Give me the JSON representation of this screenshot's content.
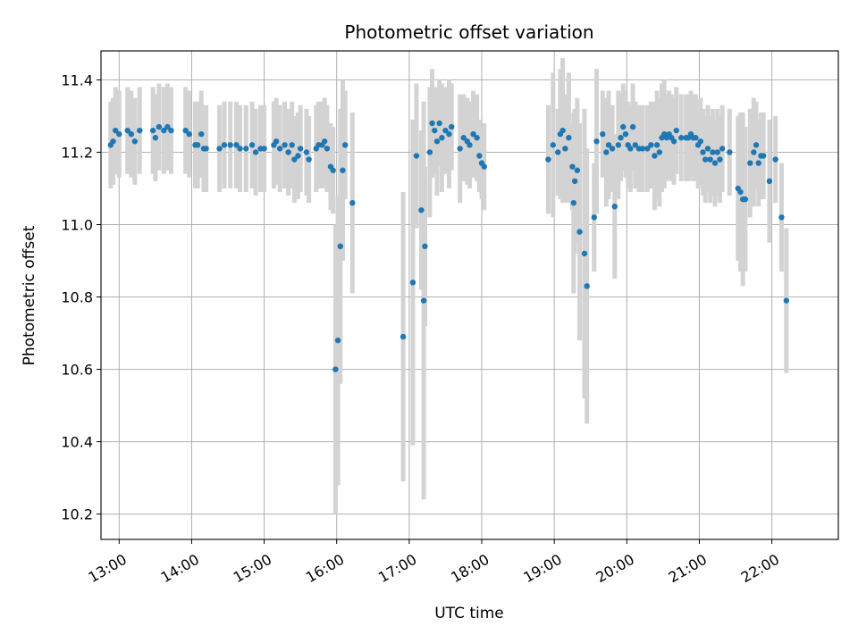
{
  "chart_data": {
    "type": "scatter",
    "title": "Photometric offset variation",
    "xlabel": "UTC time",
    "ylabel": "Photometric offset",
    "xlim": [
      "12:45",
      "22:55"
    ],
    "ylim": [
      10.13,
      11.48
    ],
    "x_ticks": [
      "13:00",
      "14:00",
      "15:00",
      "16:00",
      "17:00",
      "18:00",
      "19:00",
      "20:00",
      "21:00",
      "22:00"
    ],
    "y_ticks": [
      "10.2",
      "10.4",
      "10.6",
      "10.8",
      "11.0",
      "11.2",
      "11.4"
    ],
    "grid": true,
    "colors": {
      "point": "#1f77b4",
      "errorbar": "#d3d3d3",
      "grid": "#b0b0b0"
    },
    "series": [
      {
        "points": [
          [
            "12:53",
            11.22,
            0.12
          ],
          [
            "12:55",
            11.23,
            0.12
          ],
          [
            "12:57",
            11.26,
            0.12
          ],
          [
            "13:00",
            11.25,
            0.12
          ],
          [
            "13:07",
            11.26,
            0.12
          ],
          [
            "13:10",
            11.25,
            0.12
          ],
          [
            "13:13",
            11.23,
            0.12
          ],
          [
            "13:17",
            11.26,
            0.12
          ],
          [
            "13:28",
            11.26,
            0.12
          ],
          [
            "13:30",
            11.24,
            0.12
          ],
          [
            "13:33",
            11.27,
            0.12
          ],
          [
            "13:37",
            11.26,
            0.12
          ],
          [
            "13:40",
            11.27,
            0.12
          ],
          [
            "13:43",
            11.26,
            0.12
          ],
          [
            "13:55",
            11.26,
            0.12
          ],
          [
            "13:58",
            11.25,
            0.12
          ],
          [
            "14:03",
            11.22,
            0.12
          ],
          [
            "14:05",
            11.22,
            0.12
          ],
          [
            "14:08",
            11.25,
            0.12
          ],
          [
            "14:10",
            11.21,
            0.12
          ],
          [
            "14:12",
            11.21,
            0.12
          ],
          [
            "14:23",
            11.21,
            0.12
          ],
          [
            "14:27",
            11.22,
            0.12
          ],
          [
            "14:32",
            11.22,
            0.12
          ],
          [
            "14:37",
            11.22,
            0.12
          ],
          [
            "14:40",
            11.21,
            0.12
          ],
          [
            "14:45",
            11.21,
            0.12
          ],
          [
            "14:50",
            11.22,
            0.12
          ],
          [
            "14:53",
            11.2,
            0.12
          ],
          [
            "14:57",
            11.21,
            0.12
          ],
          [
            "15:00",
            11.21,
            0.12
          ],
          [
            "15:08",
            11.22,
            0.12
          ],
          [
            "15:10",
            11.23,
            0.12
          ],
          [
            "15:13",
            11.21,
            0.12
          ],
          [
            "15:17",
            11.22,
            0.12
          ],
          [
            "15:20",
            11.2,
            0.12
          ],
          [
            "15:23",
            11.22,
            0.12
          ],
          [
            "15:25",
            11.18,
            0.12
          ],
          [
            "15:28",
            11.19,
            0.12
          ],
          [
            "15:30",
            11.21,
            0.12
          ],
          [
            "15:35",
            11.2,
            0.12
          ],
          [
            "15:37",
            11.18,
            0.12
          ],
          [
            "15:43",
            11.21,
            0.12
          ],
          [
            "15:45",
            11.22,
            0.12
          ],
          [
            "15:48",
            11.22,
            0.12
          ],
          [
            "15:50",
            11.23,
            0.12
          ],
          [
            "15:52",
            11.21,
            0.12
          ],
          [
            "15:55",
            11.16,
            0.12
          ],
          [
            "15:57",
            11.15,
            0.12
          ],
          [
            "15:59",
            10.6,
            0.4
          ],
          [
            "16:01",
            10.68,
            0.4
          ],
          [
            "16:03",
            10.94,
            0.38
          ],
          [
            "16:05",
            11.15,
            0.25
          ],
          [
            "16:07",
            11.22,
            0.15
          ],
          [
            "16:13",
            11.06,
            0.25
          ],
          [
            "16:55",
            10.69,
            0.4
          ],
          [
            "17:03",
            10.84,
            0.45
          ],
          [
            "17:06",
            11.19,
            0.2
          ],
          [
            "17:10",
            11.04,
            0.22
          ],
          [
            "17:12",
            10.79,
            0.55
          ],
          [
            "17:13",
            10.94,
            0.22
          ],
          [
            "17:17",
            11.2,
            0.18
          ],
          [
            "17:19",
            11.28,
            0.15
          ],
          [
            "17:21",
            11.26,
            0.12
          ],
          [
            "17:23",
            11.23,
            0.15
          ],
          [
            "17:25",
            11.28,
            0.12
          ],
          [
            "17:27",
            11.24,
            0.15
          ],
          [
            "17:30",
            11.26,
            0.12
          ],
          [
            "17:33",
            11.25,
            0.15
          ],
          [
            "17:35",
            11.27,
            0.12
          ],
          [
            "17:42",
            11.21,
            0.15
          ],
          [
            "17:45",
            11.24,
            0.12
          ],
          [
            "17:48",
            11.23,
            0.12
          ],
          [
            "17:50",
            11.22,
            0.12
          ],
          [
            "17:53",
            11.25,
            0.12
          ],
          [
            "17:56",
            11.24,
            0.12
          ],
          [
            "17:58",
            11.19,
            0.1
          ],
          [
            "18:00",
            11.17,
            0.1
          ],
          [
            "18:02",
            11.16,
            0.12
          ],
          [
            "18:55",
            11.18,
            0.15
          ],
          [
            "18:59",
            11.22,
            0.2
          ],
          [
            "19:03",
            11.2,
            0.12
          ],
          [
            "19:05",
            11.25,
            0.18
          ],
          [
            "19:07",
            11.26,
            0.2
          ],
          [
            "19:09",
            11.21,
            0.15
          ],
          [
            "19:12",
            11.24,
            0.18
          ],
          [
            "19:15",
            11.16,
            0.12
          ],
          [
            "19:16",
            11.06,
            0.25
          ],
          [
            "19:17",
            11.12,
            0.2
          ],
          [
            "19:19",
            11.15,
            0.2
          ],
          [
            "19:21",
            10.98,
            0.3
          ],
          [
            "19:25",
            10.92,
            0.4
          ],
          [
            "19:27",
            10.83,
            0.38
          ],
          [
            "19:33",
            11.02,
            0.15
          ],
          [
            "19:35",
            11.23,
            0.2
          ],
          [
            "19:40",
            11.25,
            0.12
          ],
          [
            "19:43",
            11.2,
            0.15
          ],
          [
            "19:45",
            11.22,
            0.15
          ],
          [
            "19:48",
            11.21,
            0.12
          ],
          [
            "19:50",
            11.05,
            0.2
          ],
          [
            "19:53",
            11.22,
            0.15
          ],
          [
            "19:55",
            11.24,
            0.12
          ],
          [
            "19:57",
            11.27,
            0.12
          ],
          [
            "19:59",
            11.25,
            0.12
          ],
          [
            "20:01",
            11.22,
            0.12
          ],
          [
            "20:03",
            11.21,
            0.12
          ],
          [
            "20:05",
            11.27,
            0.12
          ],
          [
            "20:07",
            11.22,
            0.12
          ],
          [
            "20:10",
            11.21,
            0.12
          ],
          [
            "20:13",
            11.21,
            0.12
          ],
          [
            "20:17",
            11.21,
            0.12
          ],
          [
            "20:20",
            11.22,
            0.12
          ],
          [
            "20:23",
            11.19,
            0.15
          ],
          [
            "20:25",
            11.22,
            0.15
          ],
          [
            "20:27",
            11.2,
            0.15
          ],
          [
            "20:29",
            11.24,
            0.15
          ],
          [
            "20:31",
            11.25,
            0.15
          ],
          [
            "20:33",
            11.24,
            0.12
          ],
          [
            "20:35",
            11.25,
            0.12
          ],
          [
            "20:37",
            11.24,
            0.12
          ],
          [
            "20:39",
            11.23,
            0.12
          ],
          [
            "20:41",
            11.26,
            0.12
          ],
          [
            "20:45",
            11.24,
            0.12
          ],
          [
            "20:49",
            11.24,
            0.12
          ],
          [
            "20:51",
            11.24,
            0.12
          ],
          [
            "20:53",
            11.25,
            0.12
          ],
          [
            "20:55",
            11.24,
            0.12
          ],
          [
            "20:57",
            11.24,
            0.12
          ],
          [
            "20:59",
            11.22,
            0.12
          ],
          [
            "21:01",
            11.23,
            0.12
          ],
          [
            "21:03",
            11.2,
            0.12
          ],
          [
            "21:05",
            11.18,
            0.12
          ],
          [
            "21:07",
            11.21,
            0.12
          ],
          [
            "21:09",
            11.18,
            0.12
          ],
          [
            "21:11",
            11.2,
            0.12
          ],
          [
            "21:13",
            11.17,
            0.12
          ],
          [
            "21:15",
            11.2,
            0.12
          ],
          [
            "21:17",
            11.18,
            0.12
          ],
          [
            "21:19",
            11.21,
            0.12
          ],
          [
            "21:25",
            11.2,
            0.12
          ],
          [
            "21:32",
            11.1,
            0.2
          ],
          [
            "21:34",
            11.09,
            0.22
          ],
          [
            "21:36",
            11.07,
            0.24
          ],
          [
            "21:38",
            11.07,
            0.2
          ],
          [
            "21:42",
            11.17,
            0.15
          ],
          [
            "21:45",
            11.2,
            0.15
          ],
          [
            "21:47",
            11.22,
            0.12
          ],
          [
            "21:49",
            11.17,
            0.12
          ],
          [
            "21:51",
            11.19,
            0.12
          ],
          [
            "21:53",
            11.19,
            0.12
          ],
          [
            "21:58",
            11.12,
            0.17
          ],
          [
            "22:03",
            11.18,
            0.12
          ],
          [
            "22:08",
            11.02,
            0.15
          ],
          [
            "22:12",
            10.79,
            0.2
          ]
        ]
      }
    ]
  }
}
